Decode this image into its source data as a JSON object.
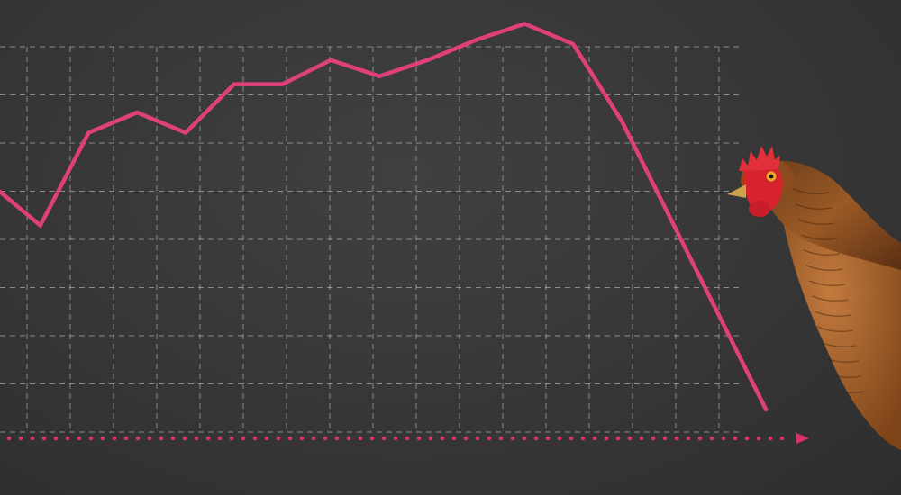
{
  "colors": {
    "background": "#383838",
    "grid": "#cfcfcf",
    "line": "#e0407a",
    "axis": "#d9306e"
  },
  "chart_data": {
    "type": "line",
    "title": "",
    "xlabel": "",
    "ylabel": "",
    "grid": true,
    "ylim": [
      0,
      100
    ],
    "series": [
      {
        "x": [
          0,
          1,
          2,
          3,
          4,
          5,
          6,
          7,
          8,
          9,
          10,
          11,
          12,
          13,
          14,
          15,
          16
        ],
        "values": [
          59,
          49,
          72,
          77,
          72,
          84,
          84,
          90,
          86,
          90,
          95,
          99,
          94,
          75,
          51,
          27,
          3
        ]
      }
    ]
  },
  "illustration": {
    "subject": "hen-icon"
  }
}
